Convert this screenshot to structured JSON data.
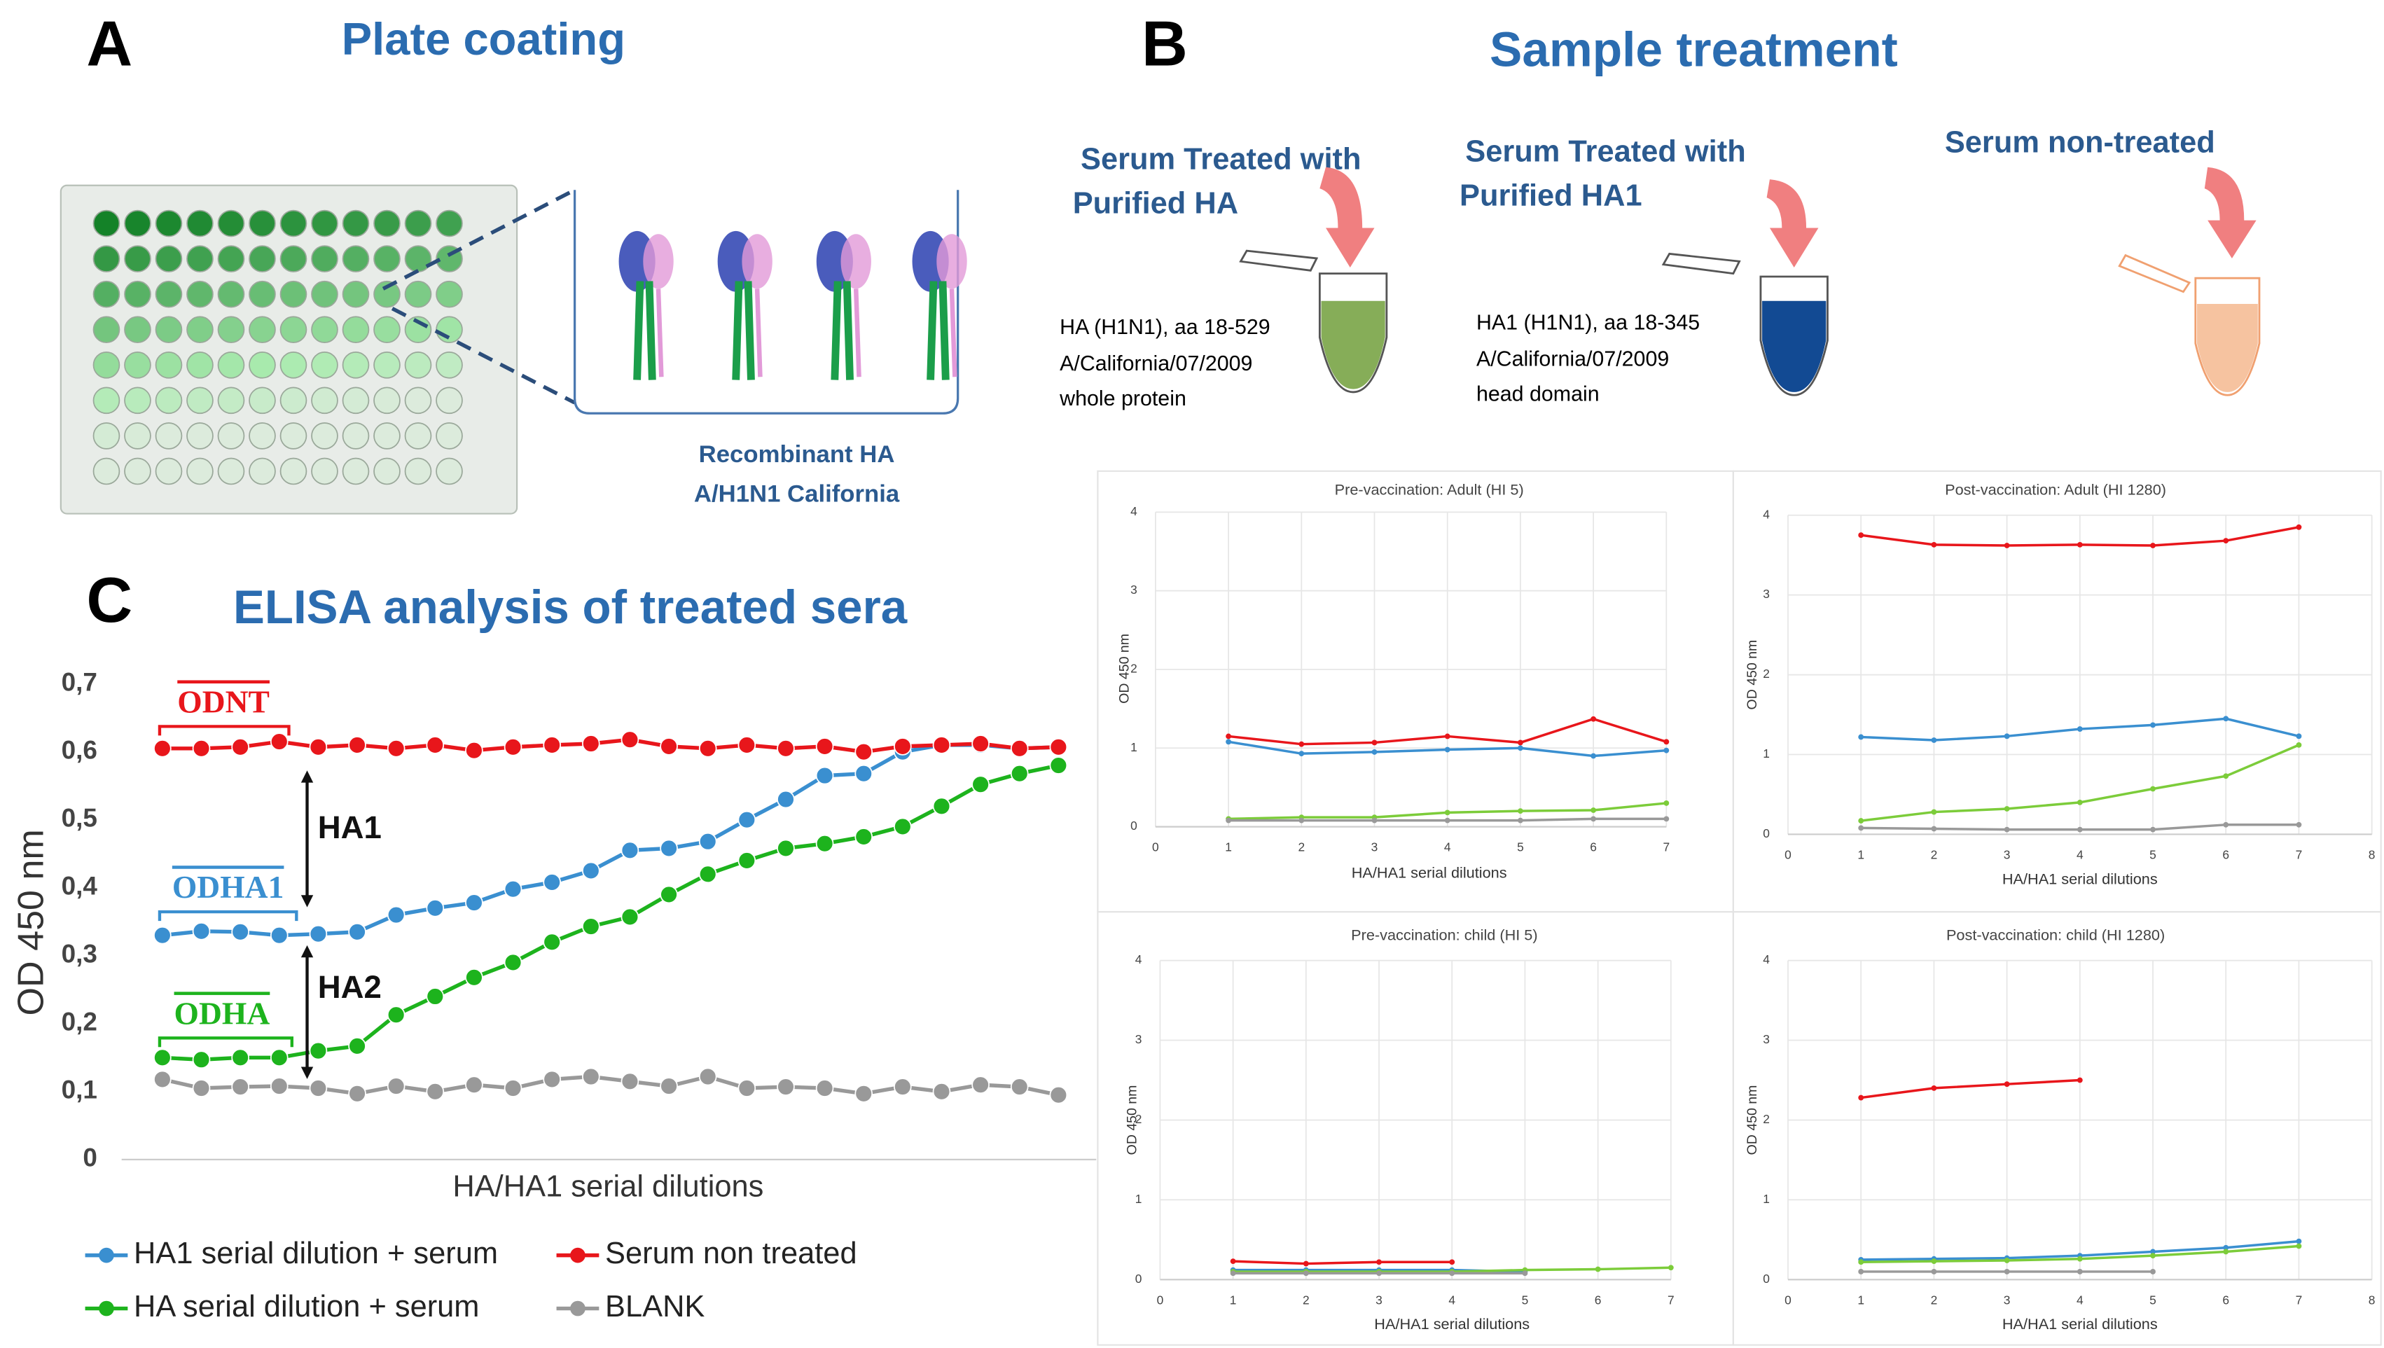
{
  "panels": {
    "a": {
      "label": "A",
      "title": "Plate coating",
      "caption": [
        "Recombinant HA",
        "A/H1N1 California"
      ]
    },
    "b": {
      "label": "B",
      "title": "Sample treatment",
      "samples": [
        {
          "title": [
            "Serum Treated with",
            "Purified HA"
          ],
          "details": [
            "HA (H1N1), aa 18-529",
            "A/California/07/2009",
            "whole protein"
          ]
        },
        {
          "title": [
            "Serum Treated with",
            "Purified HA1"
          ],
          "details": [
            "HA1 (H1N1), aa 18-345",
            "A/California/07/2009",
            "head domain"
          ]
        },
        {
          "title": [
            "Serum non-treated"
          ],
          "details": []
        }
      ]
    }
  },
  "chart_data": [
    {
      "type": "line",
      "panel_label": "C",
      "title": "ELISA analysis of treated sera",
      "x_label": "HA/HA1 serial dilutions",
      "y_label": "OD 450 nm",
      "categories": [
        null,
        null,
        null,
        null,
        null,
        null,
        null,
        null,
        null,
        null,
        null,
        null,
        null,
        null,
        null,
        null,
        null,
        null,
        null,
        null,
        null,
        null,
        null,
        null
      ],
      "ylim": [
        0,
        0.7
      ],
      "yticks": [
        0,
        {
          "value": 0.1,
          "label": "0,1"
        },
        {
          "value": 0.2,
          "label": "0,2"
        },
        {
          "value": 0.3,
          "label": "0,3"
        },
        {
          "value": 0.4,
          "label": "0,4"
        },
        {
          "value": 0.5,
          "label": "0,5"
        },
        {
          "value": 0.6,
          "label": "0,6"
        },
        {
          "value": 0.7,
          "label": "0,7"
        }
      ],
      "grid": false,
      "annotations": [
        {
          "text": "ODNT",
          "color": "#e8161b"
        },
        {
          "text": "ODHA1",
          "color": "#3a8fd0"
        },
        {
          "text": "ODHA",
          "color": "#1db31d"
        },
        {
          "text": "HA1",
          "color": "#111111"
        },
        {
          "text": "HA2",
          "color": "#111111"
        }
      ],
      "series": [
        {
          "name": "HA1 serial dilution + serum",
          "color": "#3a8fd0",
          "values": [
            0.33,
            0.336,
            0.335,
            0.33,
            0.332,
            0.335,
            0.36,
            0.37,
            0.378,
            0.398,
            0.408,
            0.425,
            0.455,
            0.458,
            0.468,
            0.5,
            0.53,
            0.565,
            0.568,
            0.6,
            0.61,
            0.61,
            0.605,
            0.607
          ]
        },
        {
          "name": "Serum non treated",
          "color": "#e8161b",
          "values": [
            0.605,
            0.605,
            0.607,
            0.615,
            0.607,
            0.61,
            0.605,
            0.61,
            0.602,
            0.607,
            0.61,
            0.612,
            0.618,
            0.608,
            0.605,
            0.61,
            0.605,
            0.608,
            0.6,
            0.608,
            0.61,
            0.612,
            0.605,
            0.607
          ]
        },
        {
          "name": "HA serial dilution + serum",
          "color": "#1db31d",
          "values": [
            0.15,
            0.147,
            0.15,
            0.15,
            0.16,
            0.167,
            0.213,
            0.24,
            0.268,
            0.29,
            0.32,
            0.343,
            0.357,
            0.39,
            0.42,
            0.44,
            0.458,
            0.465,
            0.475,
            0.49,
            0.52,
            0.552,
            0.568,
            0.58
          ]
        },
        {
          "name": "BLANK",
          "color": "#999999",
          "values": [
            0.118,
            0.105,
            0.107,
            0.108,
            0.105,
            0.097,
            0.108,
            0.1,
            0.11,
            0.105,
            0.118,
            0.122,
            0.115,
            0.108,
            0.122,
            0.105,
            0.107,
            0.105,
            0.097,
            0.107,
            0.1,
            0.11,
            0.107,
            0.095
          ]
        }
      ]
    },
    {
      "type": "line",
      "title": "Pre-vaccination: Adult (HI 5)",
      "x_label": "HA/HA1 serial dilutions",
      "y_label": "OD 450 nm",
      "x": [
        1,
        2,
        3,
        4,
        5,
        6,
        7
      ],
      "xlim": [
        0,
        7
      ],
      "xticks": [
        0,
        1,
        2,
        3,
        4,
        5,
        6,
        7
      ],
      "ylim": [
        0,
        4
      ],
      "yticks": [
        0,
        1,
        2,
        3,
        4
      ],
      "grid": true,
      "series": [
        {
          "color": "#e8161b",
          "values": [
            1.15,
            1.05,
            1.07,
            1.15,
            1.07,
            1.37,
            1.08
          ]
        },
        {
          "color": "#3a8fd0",
          "values": [
            1.08,
            0.93,
            0.95,
            0.98,
            1.0,
            0.9,
            0.97
          ]
        },
        {
          "color": "#7ccc3a",
          "values": [
            0.1,
            0.12,
            0.12,
            0.18,
            0.2,
            0.21,
            0.3
          ]
        },
        {
          "color": "#999999",
          "values": [
            0.08,
            0.08,
            0.08,
            0.08,
            0.08,
            0.1,
            0.1
          ]
        }
      ]
    },
    {
      "type": "line",
      "title": "Post-vaccination: Adult (HI 1280)",
      "x_label": "HA/HA1 serial dilutions",
      "y_label": "OD 450 nm",
      "x": [
        1,
        2,
        3,
        4,
        5,
        6,
        7
      ],
      "xlim": [
        0,
        8
      ],
      "xticks": [
        0,
        1,
        2,
        3,
        4,
        5,
        6,
        7,
        8
      ],
      "ylim": [
        0,
        4
      ],
      "yticks": [
        0,
        1,
        2,
        3,
        4
      ],
      "grid": true,
      "series": [
        {
          "color": "#e8161b",
          "values": [
            3.75,
            3.63,
            3.62,
            3.63,
            3.62,
            3.68,
            3.85
          ]
        },
        {
          "color": "#3a8fd0",
          "values": [
            1.22,
            1.18,
            1.23,
            1.32,
            1.37,
            1.45,
            1.23
          ]
        },
        {
          "color": "#7ccc3a",
          "values": [
            0.17,
            0.28,
            0.32,
            0.4,
            0.57,
            0.73,
            1.12
          ]
        },
        {
          "color": "#999999",
          "values": [
            0.08,
            0.07,
            0.06,
            0.06,
            0.06,
            0.12,
            0.12
          ]
        }
      ]
    },
    {
      "type": "line",
      "title": "Pre-vaccination: child (HI 5)",
      "x_label": "HA/HA1 serial dilutions",
      "y_label": "OD 450 nm",
      "x": [
        1,
        2,
        3,
        4,
        5,
        6,
        7
      ],
      "xlim": [
        0,
        7
      ],
      "xticks": [
        0,
        1,
        2,
        3,
        4,
        5,
        6,
        7
      ],
      "ylim": [
        0,
        4
      ],
      "yticks": [
        0,
        1,
        2,
        3,
        4
      ],
      "grid": true,
      "series": [
        {
          "color": "#e8161b",
          "values": [
            0.23,
            0.2,
            0.22,
            0.22,
            null,
            null,
            null
          ]
        },
        {
          "color": "#3a8fd0",
          "values": [
            0.12,
            0.12,
            0.12,
            0.12,
            0.1,
            null,
            null
          ]
        },
        {
          "color": "#7ccc3a",
          "values": [
            0.1,
            0.1,
            0.1,
            0.1,
            0.12,
            0.13,
            0.15
          ]
        },
        {
          "color": "#999999",
          "values": [
            0.08,
            0.08,
            0.08,
            0.08,
            0.08,
            null,
            null
          ]
        }
      ]
    },
    {
      "type": "line",
      "title": "Post-vaccination: child (HI 1280)",
      "x_label": "HA/HA1 serial dilutions",
      "y_label": "OD 450 nm",
      "x": [
        1,
        2,
        3,
        4,
        5,
        6,
        7
      ],
      "xlim": [
        0,
        8
      ],
      "xticks": [
        0,
        1,
        2,
        3,
        4,
        5,
        6,
        7,
        8
      ],
      "ylim": [
        0,
        4
      ],
      "yticks": [
        0,
        1,
        2,
        3,
        4
      ],
      "grid": true,
      "series": [
        {
          "color": "#e8161b",
          "values": [
            2.28,
            2.4,
            2.45,
            2.5,
            null,
            null,
            null
          ]
        },
        {
          "color": "#3a8fd0",
          "values": [
            0.25,
            0.26,
            0.27,
            0.3,
            0.35,
            0.4,
            0.48
          ]
        },
        {
          "color": "#7ccc3a",
          "values": [
            0.22,
            0.23,
            0.24,
            0.26,
            0.3,
            0.35,
            0.42
          ]
        },
        {
          "color": "#999999",
          "values": [
            0.1,
            0.1,
            0.1,
            0.1,
            0.1,
            null,
            null
          ]
        }
      ]
    }
  ]
}
